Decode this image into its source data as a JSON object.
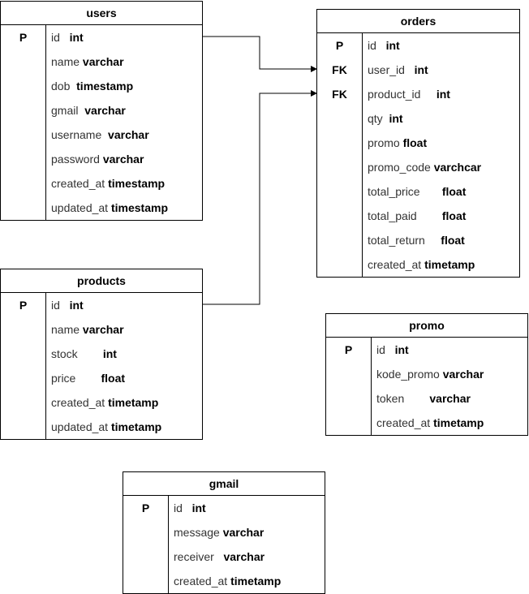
{
  "tables": [
    {
      "id": "users",
      "title": "users",
      "fields": [
        {
          "key": "P",
          "name": "id",
          "type": "int",
          "gap": "   "
        },
        {
          "key": "",
          "name": "name",
          "type": "varchar",
          "gap": " "
        },
        {
          "key": "",
          "name": "dob",
          "type": "timestamp",
          "gap": "  "
        },
        {
          "key": "",
          "name": "gmail",
          "type": "varchar",
          "gap": "  "
        },
        {
          "key": "",
          "name": "username",
          "type": "varchar",
          "gap": "  "
        },
        {
          "key": "",
          "name": "password",
          "type": "varchar",
          "gap": " "
        },
        {
          "key": "",
          "name": "created_at",
          "type": "timestamp",
          "gap": " "
        },
        {
          "key": "",
          "name": "updated_at",
          "type": "timestamp",
          "gap": " "
        }
      ]
    },
    {
      "id": "orders",
      "title": "orders",
      "fields": [
        {
          "key": "P",
          "name": "id",
          "type": "int",
          "gap": "   "
        },
        {
          "key": "FK",
          "name": "user_id",
          "type": "int",
          "gap": "   "
        },
        {
          "key": "FK",
          "name": "product_id",
          "type": "int",
          "gap": "     "
        },
        {
          "key": "",
          "name": "qty",
          "type": "int",
          "gap": "  "
        },
        {
          "key": "",
          "name": "promo",
          "type": "float",
          "gap": " "
        },
        {
          "key": "",
          "name": "promo_code",
          "type": "varchcar",
          "gap": " "
        },
        {
          "key": "",
          "name": "total_price",
          "type": "float",
          "gap": "       "
        },
        {
          "key": "",
          "name": "total_paid",
          "type": "float",
          "gap": "        "
        },
        {
          "key": "",
          "name": "total_return",
          "type": "float",
          "gap": "     "
        },
        {
          "key": "",
          "name": "created_at",
          "type": "timetamp",
          "gap": " "
        }
      ]
    },
    {
      "id": "products",
      "title": "products",
      "fields": [
        {
          "key": "P",
          "name": "id",
          "type": "int",
          "gap": "   "
        },
        {
          "key": "",
          "name": "name",
          "type": "varchar",
          "gap": " "
        },
        {
          "key": "",
          "name": "stock",
          "type": "int",
          "gap": "        "
        },
        {
          "key": "",
          "name": "price",
          "type": "float",
          "gap": "        "
        },
        {
          "key": "",
          "name": "created_at",
          "type": "timetamp",
          "gap": " "
        },
        {
          "key": "",
          "name": "updated_at",
          "type": "timetamp",
          "gap": " "
        }
      ]
    },
    {
      "id": "promo",
      "title": "promo",
      "fields": [
        {
          "key": "P",
          "name": "id",
          "type": "int",
          "gap": "   "
        },
        {
          "key": "",
          "name": "kode_promo",
          "type": "varchar",
          "gap": " "
        },
        {
          "key": "",
          "name": "token",
          "type": "varchar",
          "gap": "        "
        },
        {
          "key": "",
          "name": "created_at",
          "type": "timetamp",
          "gap": " "
        }
      ]
    },
    {
      "id": "gmail",
      "title": "gmail",
      "fields": [
        {
          "key": "P",
          "name": "id",
          "type": "int",
          "gap": "   "
        },
        {
          "key": "",
          "name": "message",
          "type": "varchar",
          "gap": " "
        },
        {
          "key": "",
          "name": "receiver",
          "type": "varchar",
          "gap": "   "
        },
        {
          "key": "",
          "name": "created_at",
          "type": "timetamp",
          "gap": " "
        }
      ]
    }
  ],
  "relations": [
    {
      "from_table": "users",
      "from_field": "id",
      "to_table": "orders",
      "to_field": "user_id"
    },
    {
      "from_table": "products",
      "from_field": "id",
      "to_table": "orders",
      "to_field": "product_id"
    }
  ]
}
